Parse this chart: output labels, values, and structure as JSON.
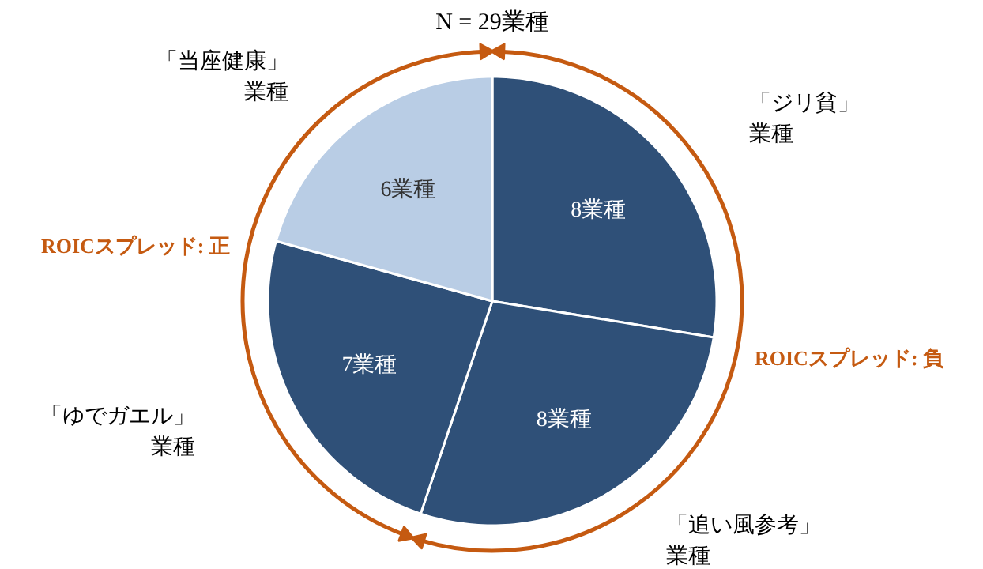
{
  "chart_data": {
    "type": "pie",
    "title": "N = 29業種",
    "categories": [
      "「ジリ貧」業種",
      "「追い風参考」業種",
      "「ゆでガエル」業種",
      "「当座健康」業種"
    ],
    "values": [
      8,
      8,
      7,
      6
    ],
    "colors": [
      "#2f5078",
      "#2f5078",
      "#2f5078",
      "#b9cde5"
    ],
    "value_labels": [
      "8業種",
      "8業種",
      "7業種",
      "6業種"
    ],
    "annotations": [
      "ROICスプレッド: 負",
      "ROICスプレッド: 正"
    ]
  }
}
